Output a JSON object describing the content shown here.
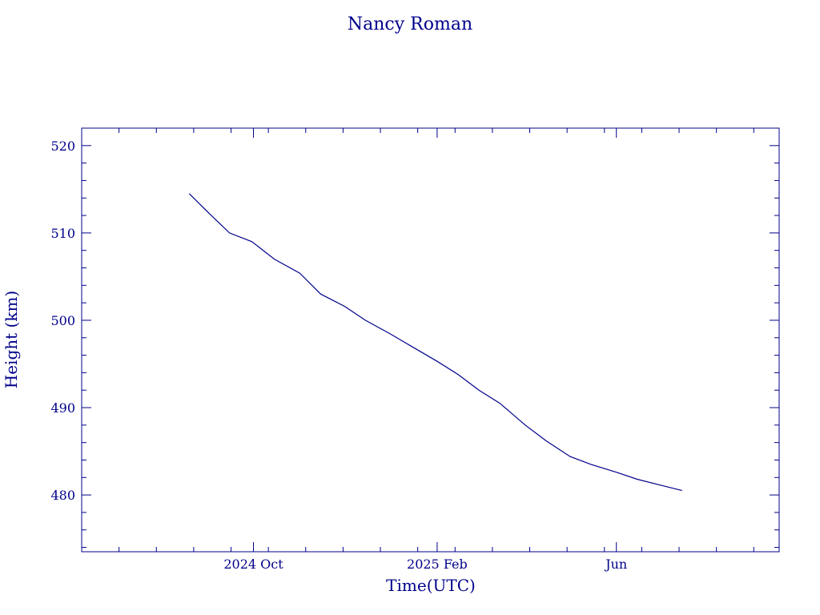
{
  "chart_data": {
    "type": "line",
    "title": "Nancy Roman",
    "xlabel": "Time(UTC)",
    "ylabel": "Height (km)",
    "color": "#00008b",
    "xlim": [
      "2024-06-08",
      "2025-09-18"
    ],
    "ylim": [
      473.5,
      522
    ],
    "grid": false,
    "yticks": [
      480,
      490,
      500,
      510,
      520
    ],
    "xticks": [
      {
        "date": "2024-10-01",
        "label": "2024 Oct"
      },
      {
        "date": "2025-02-01",
        "label": "2025 Feb"
      },
      {
        "date": "2025-06-01",
        "label": "Jun"
      }
    ],
    "x": [
      "2024-08-19",
      "2024-09-01",
      "2024-09-15",
      "2024-09-30",
      "2024-10-15",
      "2024-11-01",
      "2024-11-15",
      "2024-12-01",
      "2024-12-15",
      "2025-01-01",
      "2025-01-15",
      "2025-02-01",
      "2025-02-15",
      "2025-03-01",
      "2025-03-15",
      "2025-04-01",
      "2025-04-15",
      "2025-05-01",
      "2025-05-15",
      "2025-06-01",
      "2025-06-15",
      "2025-07-01",
      "2025-07-15"
    ],
    "series": [
      {
        "values": [
          514.5,
          512.3,
          510.0,
          509.0,
          507.0,
          505.4,
          503.0,
          501.6,
          500.0,
          498.4,
          497.0,
          495.3,
          493.8,
          492.0,
          490.5,
          488.0,
          486.2,
          484.4,
          483.5,
          482.6,
          481.8,
          481.1,
          480.5
        ]
      }
    ]
  }
}
